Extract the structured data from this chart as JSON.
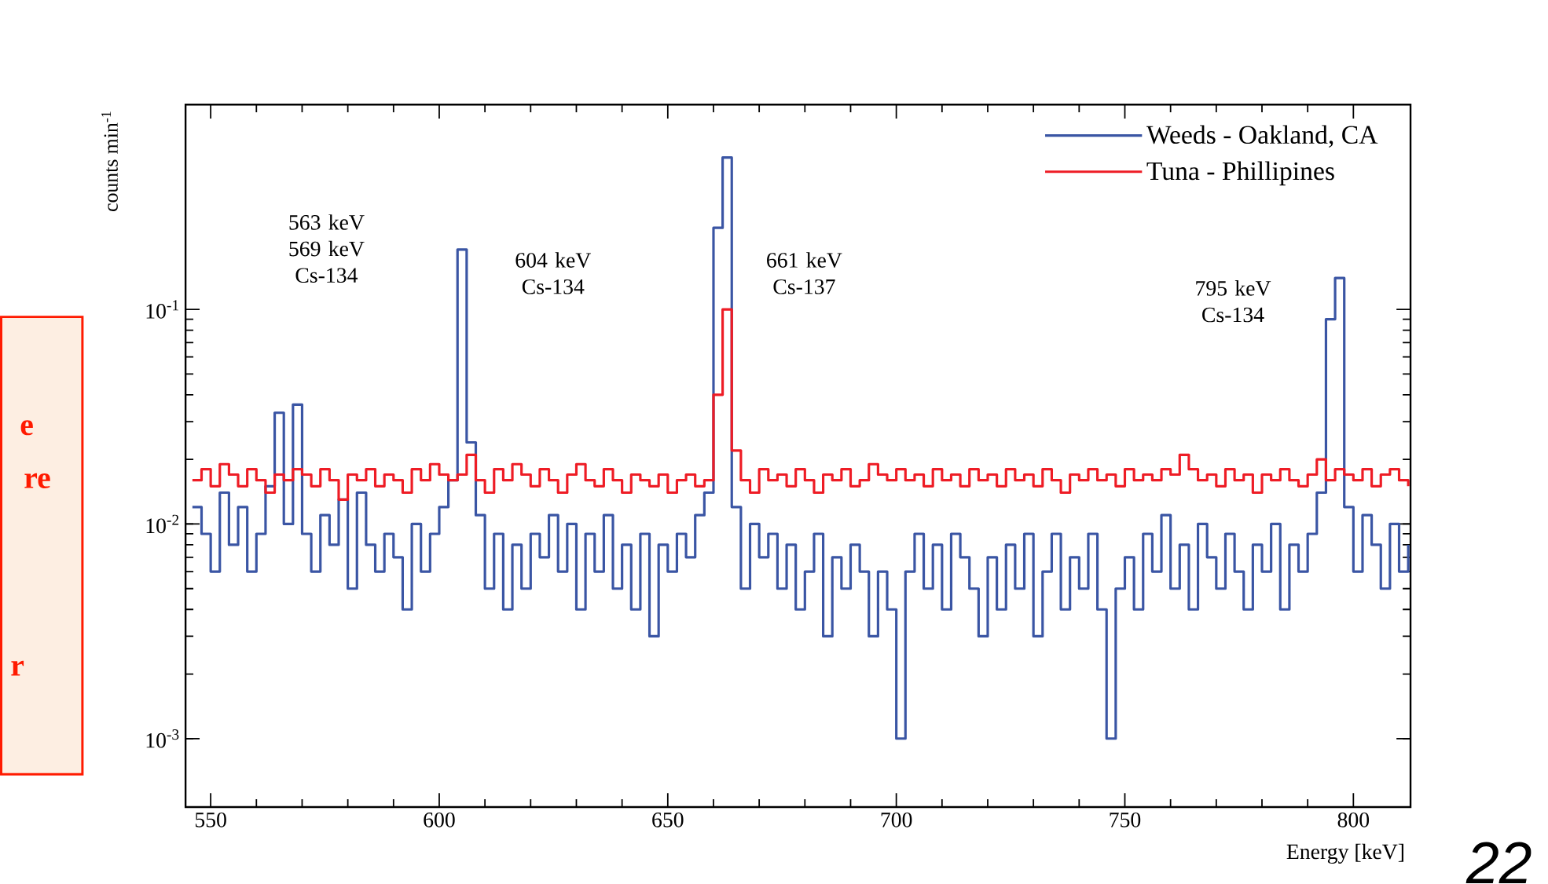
{
  "chart_data": {
    "type": "step",
    "xlabel": "Energy [keV]",
    "ylabel": "counts min$^{-1}$",
    "log": "y",
    "legend": "top right",
    "xlim": [
      544.5,
      812.5
    ],
    "xticks": [
      550,
      600,
      650,
      700,
      750,
      800
    ],
    "ylim": [
      0.00048,
      0.9
    ],
    "yticks": [
      {
        "value": 0.001,
        "label": "10$^{-3}$"
      },
      {
        "value": 0.01,
        "label": "10$^{-2}$"
      },
      {
        "value": 0.1,
        "label": "10$^{-1}$"
      }
    ],
    "x": [
      546,
      548,
      550,
      552,
      554,
      556,
      558,
      560,
      562,
      564,
      566,
      568,
      570,
      572,
      574,
      576,
      578,
      580,
      582,
      584,
      586,
      588,
      590,
      592,
      594,
      596,
      598,
      600,
      602,
      604,
      606,
      608,
      610,
      612,
      614,
      616,
      618,
      620,
      622,
      624,
      626,
      628,
      630,
      632,
      634,
      636,
      638,
      640,
      642,
      644,
      646,
      648,
      650,
      652,
      654,
      656,
      658,
      660,
      662,
      664,
      666,
      668,
      670,
      672,
      674,
      676,
      678,
      680,
      682,
      684,
      686,
      688,
      690,
      692,
      694,
      696,
      698,
      700,
      702,
      704,
      706,
      708,
      710,
      712,
      714,
      716,
      718,
      720,
      722,
      724,
      726,
      728,
      730,
      732,
      734,
      736,
      738,
      740,
      742,
      744,
      746,
      748,
      750,
      752,
      754,
      756,
      758,
      760,
      762,
      764,
      766,
      768,
      770,
      772,
      774,
      776,
      778,
      780,
      782,
      784,
      786,
      788,
      790,
      792,
      794,
      796,
      798,
      800,
      802,
      804,
      806,
      808,
      810,
      812
    ],
    "series": [
      {
        "name": "Weeds - Oakland, CA",
        "color": "#3a55a4",
        "values": [
          0.012,
          0.009,
          0.006,
          0.014,
          0.008,
          0.012,
          0.006,
          0.009,
          0.015,
          0.033,
          0.01,
          0.036,
          0.009,
          0.006,
          0.011,
          0.008,
          0.013,
          0.005,
          0.014,
          0.008,
          0.006,
          0.009,
          0.007,
          0.004,
          0.01,
          0.006,
          0.009,
          0.012,
          0.016,
          0.19,
          0.024,
          0.011,
          0.005,
          0.009,
          0.004,
          0.008,
          0.005,
          0.009,
          0.007,
          0.011,
          0.006,
          0.01,
          0.004,
          0.009,
          0.006,
          0.011,
          0.005,
          0.008,
          0.004,
          0.009,
          0.003,
          0.008,
          0.006,
          0.009,
          0.007,
          0.011,
          0.014,
          0.24,
          0.51,
          0.012,
          0.005,
          0.01,
          0.007,
          0.009,
          0.005,
          0.008,
          0.004,
          0.006,
          0.009,
          0.003,
          0.007,
          0.005,
          0.008,
          0.006,
          0.003,
          0.006,
          0.004,
          0.001,
          0.006,
          0.009,
          0.005,
          0.008,
          0.004,
          0.009,
          0.007,
          0.005,
          0.003,
          0.007,
          0.004,
          0.008,
          0.005,
          0.009,
          0.003,
          0.006,
          0.009,
          0.004,
          0.007,
          0.005,
          0.009,
          0.004,
          0.001,
          0.005,
          0.007,
          0.004,
          0.009,
          0.006,
          0.011,
          0.005,
          0.008,
          0.004,
          0.01,
          0.007,
          0.005,
          0.009,
          0.006,
          0.004,
          0.008,
          0.006,
          0.01,
          0.004,
          0.008,
          0.006,
          0.009,
          0.014,
          0.09,
          0.14,
          0.012,
          0.006,
          0.011,
          0.008,
          0.005,
          0.01,
          0.006,
          0.008
        ]
      },
      {
        "name": "Tuna - Phillipines",
        "color": "#ee1c25",
        "values": [
          0.016,
          0.018,
          0.015,
          0.019,
          0.017,
          0.015,
          0.018,
          0.016,
          0.014,
          0.017,
          0.016,
          0.018,
          0.017,
          0.015,
          0.018,
          0.016,
          0.013,
          0.017,
          0.016,
          0.018,
          0.015,
          0.017,
          0.016,
          0.014,
          0.018,
          0.016,
          0.019,
          0.017,
          0.016,
          0.017,
          0.021,
          0.016,
          0.014,
          0.018,
          0.016,
          0.019,
          0.017,
          0.015,
          0.018,
          0.016,
          0.014,
          0.017,
          0.019,
          0.016,
          0.015,
          0.018,
          0.016,
          0.014,
          0.017,
          0.016,
          0.015,
          0.017,
          0.014,
          0.016,
          0.017,
          0.015,
          0.016,
          0.04,
          0.1,
          0.022,
          0.016,
          0.014,
          0.018,
          0.016,
          0.017,
          0.015,
          0.018,
          0.016,
          0.014,
          0.017,
          0.016,
          0.018,
          0.015,
          0.016,
          0.019,
          0.017,
          0.016,
          0.018,
          0.016,
          0.017,
          0.015,
          0.018,
          0.016,
          0.017,
          0.015,
          0.018,
          0.016,
          0.017,
          0.015,
          0.018,
          0.016,
          0.017,
          0.015,
          0.018,
          0.016,
          0.014,
          0.017,
          0.016,
          0.018,
          0.016,
          0.017,
          0.015,
          0.018,
          0.016,
          0.017,
          0.016,
          0.018,
          0.017,
          0.021,
          0.018,
          0.016,
          0.017,
          0.015,
          0.018,
          0.016,
          0.017,
          0.014,
          0.017,
          0.016,
          0.018,
          0.016,
          0.015,
          0.017,
          0.02,
          0.016,
          0.018,
          0.017,
          0.016,
          0.018,
          0.015,
          0.017,
          0.018,
          0.016,
          0.015
        ]
      }
    ],
    "annotations": [
      "563 keV 569 keV Cs-134",
      "604 keV Cs-134",
      "661 keV Cs-137",
      "795 keV Cs-134",
      "e",
      "re",
      "r",
      "22"
    ]
  }
}
